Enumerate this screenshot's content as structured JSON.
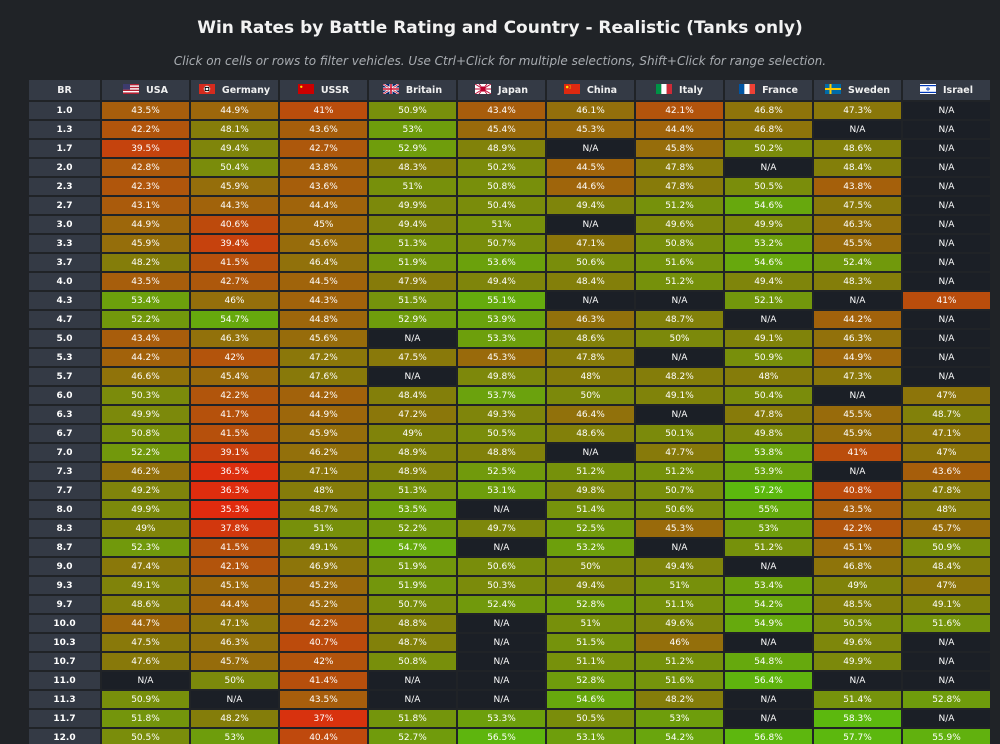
{
  "header": {
    "title": "Win Rates by Battle Rating and Country - Realistic (Tanks only)",
    "subtitle": "Click on cells or rows to filter vehicles. Use Ctrl+Click for multiple selections, Shift+Click for range selection."
  },
  "table": {
    "br_label": "BR",
    "countries": [
      {
        "name": "USA",
        "flag": "usa-flag"
      },
      {
        "name": "Germany",
        "flag": "germany-flag"
      },
      {
        "name": "USSR",
        "flag": "ussr-flag"
      },
      {
        "name": "Britain",
        "flag": "britain-flag"
      },
      {
        "name": "Japan",
        "flag": "japan-flag"
      },
      {
        "name": "China",
        "flag": "china-flag"
      },
      {
        "name": "Italy",
        "flag": "italy-flag"
      },
      {
        "name": "France",
        "flag": "france-flag"
      },
      {
        "name": "Sweden",
        "flag": "sweden-flag"
      },
      {
        "name": "Israel",
        "flag": "israel-flag"
      }
    ],
    "rows": [
      {
        "br": "1.0",
        "values": [
          "43.5%",
          "44.9%",
          "41%",
          "50.9%",
          "43.4%",
          "46.1%",
          "42.1%",
          "46.8%",
          "47.3%",
          "N/A"
        ]
      },
      {
        "br": "1.3",
        "values": [
          "42.2%",
          "48.1%",
          "43.6%",
          "53%",
          "45.4%",
          "45.3%",
          "44.4%",
          "46.8%",
          "N/A",
          "N/A"
        ]
      },
      {
        "br": "1.7",
        "values": [
          "39.5%",
          "49.4%",
          "42.7%",
          "52.9%",
          "48.9%",
          "N/A",
          "45.8%",
          "50.2%",
          "48.6%",
          "N/A"
        ]
      },
      {
        "br": "2.0",
        "values": [
          "42.8%",
          "50.4%",
          "43.8%",
          "48.3%",
          "50.2%",
          "44.5%",
          "47.8%",
          "N/A",
          "48.4%",
          "N/A"
        ]
      },
      {
        "br": "2.3",
        "values": [
          "42.3%",
          "45.9%",
          "43.6%",
          "51%",
          "50.8%",
          "44.6%",
          "47.8%",
          "50.5%",
          "43.8%",
          "N/A"
        ]
      },
      {
        "br": "2.7",
        "values": [
          "43.1%",
          "44.3%",
          "44.4%",
          "49.9%",
          "50.4%",
          "49.4%",
          "51.2%",
          "54.6%",
          "47.5%",
          "N/A"
        ]
      },
      {
        "br": "3.0",
        "values": [
          "44.9%",
          "40.6%",
          "45%",
          "49.4%",
          "51%",
          "N/A",
          "49.6%",
          "49.9%",
          "46.3%",
          "N/A"
        ]
      },
      {
        "br": "3.3",
        "values": [
          "45.9%",
          "39.4%",
          "45.6%",
          "51.3%",
          "50.7%",
          "47.1%",
          "50.8%",
          "53.2%",
          "45.5%",
          "N/A"
        ]
      },
      {
        "br": "3.7",
        "values": [
          "48.2%",
          "41.5%",
          "46.4%",
          "51.9%",
          "53.6%",
          "50.6%",
          "51.6%",
          "54.6%",
          "52.4%",
          "N/A"
        ]
      },
      {
        "br": "4.0",
        "values": [
          "43.5%",
          "42.7%",
          "44.5%",
          "47.9%",
          "49.4%",
          "48.4%",
          "51.2%",
          "49.4%",
          "48.3%",
          "N/A"
        ]
      },
      {
        "br": "4.3",
        "values": [
          "53.4%",
          "46%",
          "44.3%",
          "51.5%",
          "55.1%",
          "N/A",
          "N/A",
          "52.1%",
          "N/A",
          "41%"
        ]
      },
      {
        "br": "4.7",
        "values": [
          "52.2%",
          "54.7%",
          "44.8%",
          "52.9%",
          "53.9%",
          "46.3%",
          "48.7%",
          "N/A",
          "44.2%",
          "N/A"
        ]
      },
      {
        "br": "5.0",
        "values": [
          "43.4%",
          "46.3%",
          "45.6%",
          "N/A",
          "53.3%",
          "48.6%",
          "50%",
          "49.1%",
          "46.3%",
          "N/A"
        ]
      },
      {
        "br": "5.3",
        "values": [
          "44.2%",
          "42%",
          "47.2%",
          "47.5%",
          "45.3%",
          "47.8%",
          "N/A",
          "50.9%",
          "44.9%",
          "N/A"
        ]
      },
      {
        "br": "5.7",
        "values": [
          "46.6%",
          "45.4%",
          "47.6%",
          "N/A",
          "49.8%",
          "48%",
          "48.2%",
          "48%",
          "47.3%",
          "N/A"
        ]
      },
      {
        "br": "6.0",
        "values": [
          "50.3%",
          "42.2%",
          "44.2%",
          "48.4%",
          "53.7%",
          "50%",
          "49.1%",
          "50.4%",
          "N/A",
          "47%"
        ]
      },
      {
        "br": "6.3",
        "values": [
          "49.9%",
          "41.7%",
          "44.9%",
          "47.2%",
          "49.3%",
          "46.4%",
          "N/A",
          "47.8%",
          "45.5%",
          "48.7%"
        ]
      },
      {
        "br": "6.7",
        "values": [
          "50.8%",
          "41.5%",
          "45.9%",
          "49%",
          "50.5%",
          "48.6%",
          "50.1%",
          "49.8%",
          "45.9%",
          "47.1%"
        ]
      },
      {
        "br": "7.0",
        "values": [
          "52.2%",
          "39.1%",
          "46.2%",
          "48.9%",
          "48.8%",
          "N/A",
          "47.7%",
          "53.8%",
          "41%",
          "47%"
        ]
      },
      {
        "br": "7.3",
        "values": [
          "46.2%",
          "36.5%",
          "47.1%",
          "48.9%",
          "52.5%",
          "51.2%",
          "51.2%",
          "53.9%",
          "N/A",
          "43.6%"
        ]
      },
      {
        "br": "7.7",
        "values": [
          "49.2%",
          "36.3%",
          "48%",
          "51.3%",
          "53.1%",
          "49.8%",
          "50.7%",
          "57.2%",
          "40.8%",
          "47.8%"
        ]
      },
      {
        "br": "8.0",
        "values": [
          "49.9%",
          "35.3%",
          "48.7%",
          "53.5%",
          "N/A",
          "51.4%",
          "50.6%",
          "55%",
          "43.5%",
          "48%"
        ]
      },
      {
        "br": "8.3",
        "values": [
          "49%",
          "37.8%",
          "51%",
          "52.2%",
          "49.7%",
          "52.5%",
          "45.3%",
          "53%",
          "42.2%",
          "45.7%"
        ]
      },
      {
        "br": "8.7",
        "values": [
          "52.3%",
          "41.5%",
          "49.1%",
          "54.7%",
          "N/A",
          "53.2%",
          "N/A",
          "51.2%",
          "45.1%",
          "50.9%"
        ]
      },
      {
        "br": "9.0",
        "values": [
          "47.4%",
          "42.1%",
          "46.9%",
          "51.9%",
          "50.6%",
          "50%",
          "49.4%",
          "N/A",
          "46.8%",
          "48.4%"
        ]
      },
      {
        "br": "9.3",
        "values": [
          "49.1%",
          "45.1%",
          "45.2%",
          "51.9%",
          "50.3%",
          "49.4%",
          "51%",
          "53.4%",
          "49%",
          "47%"
        ]
      },
      {
        "br": "9.7",
        "values": [
          "48.6%",
          "44.4%",
          "45.2%",
          "50.7%",
          "52.4%",
          "52.8%",
          "51.1%",
          "54.2%",
          "48.5%",
          "49.1%"
        ]
      },
      {
        "br": "10.0",
        "values": [
          "44.7%",
          "47.1%",
          "42.2%",
          "48.8%",
          "N/A",
          "51%",
          "49.6%",
          "54.9%",
          "50.5%",
          "51.6%"
        ]
      },
      {
        "br": "10.3",
        "values": [
          "47.5%",
          "46.3%",
          "40.7%",
          "48.7%",
          "N/A",
          "51.5%",
          "46%",
          "N/A",
          "49.6%",
          "N/A"
        ]
      },
      {
        "br": "10.7",
        "values": [
          "47.6%",
          "45.7%",
          "42%",
          "50.8%",
          "N/A",
          "51.1%",
          "51.2%",
          "54.8%",
          "49.9%",
          "N/A"
        ]
      },
      {
        "br": "11.0",
        "values": [
          "N/A",
          "50%",
          "41.4%",
          "N/A",
          "N/A",
          "52.8%",
          "51.6%",
          "56.4%",
          "N/A",
          "N/A"
        ]
      },
      {
        "br": "11.3",
        "values": [
          "50.9%",
          "N/A",
          "43.5%",
          "N/A",
          "N/A",
          "54.6%",
          "48.2%",
          "N/A",
          "51.4%",
          "52.8%"
        ]
      },
      {
        "br": "11.7",
        "values": [
          "51.8%",
          "48.2%",
          "37%",
          "51.8%",
          "53.3%",
          "50.5%",
          "53%",
          "N/A",
          "58.3%",
          "N/A"
        ]
      },
      {
        "br": "12.0",
        "values": [
          "50.5%",
          "53%",
          "40.4%",
          "52.7%",
          "56.5%",
          "53.1%",
          "54.2%",
          "56.8%",
          "57.7%",
          "55.9%"
        ]
      }
    ]
  },
  "colors": {
    "background": "#202327",
    "header_bg": "#343a45",
    "na_bg": "#1b1f26",
    "scale_low": "#e02b0e",
    "scale_mid": "#857c0a",
    "scale_high": "#5cb80e"
  }
}
